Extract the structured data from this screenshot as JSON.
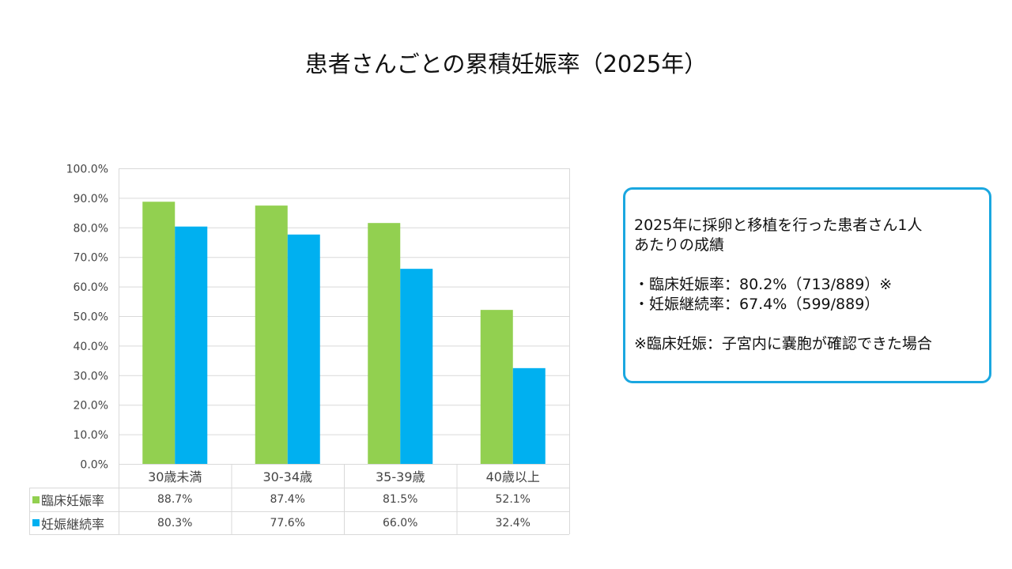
{
  "chart_data": {
    "type": "bar",
    "title": "患者さんごとの累積妊娠率（2025年）",
    "categories": [
      "30歳未満",
      "30-34歳",
      "35-39歳",
      "40歳以上"
    ],
    "series": [
      {
        "name": "臨床妊娠率",
        "color": "#92d050",
        "values": [
          88.7,
          87.4,
          81.5,
          52.1
        ],
        "labels": [
          "88.7%",
          "87.4%",
          "81.5%",
          "52.1%"
        ]
      },
      {
        "name": "妊娠継続率",
        "color": "#00b0f0",
        "values": [
          80.3,
          77.6,
          66.0,
          32.4
        ],
        "labels": [
          "80.3%",
          "77.6%",
          "66.0%",
          "32.4%"
        ]
      }
    ],
    "ylim": [
      0,
      100
    ],
    "yticks": [
      "0.0%",
      "10.0%",
      "20.0%",
      "30.0%",
      "40.0%",
      "50.0%",
      "60.0%",
      "70.0%",
      "80.0%",
      "90.0%",
      "100.0%"
    ],
    "grid": true,
    "legend": "data-table-below",
    "xlabel": "",
    "ylabel": ""
  },
  "note": {
    "line1": "2025年に採卵と移植を行った患者さん1人",
    "line2": "あたりの成績",
    "bullet1": "・臨床妊娠率：80.2%（713/889）※",
    "bullet2": "・妊娠継続率：67.4%（599/889）",
    "footnote": "※臨床妊娠：子宮内に嚢胞が確認できた場合",
    "border_color": "#1aa7e0"
  }
}
